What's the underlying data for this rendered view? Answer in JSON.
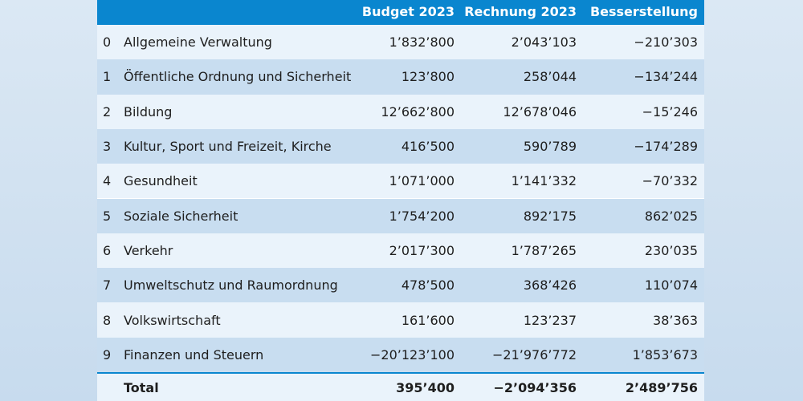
{
  "header": {
    "col_budget": "Budget 2023",
    "col_rechnung": "Rechnung 2023",
    "col_besser": "Besserstellung"
  },
  "rows": [
    {
      "num": "0",
      "name": "Allgemeine Verwaltung",
      "budget": "1’832’800",
      "rechnung": "2’043’103",
      "besser": "−210’303"
    },
    {
      "num": "1",
      "name": "Öffentliche Ordnung und Sicherheit",
      "budget": "123’800",
      "rechnung": "258’044",
      "besser": "−134’244"
    },
    {
      "num": "2",
      "name": "Bildung",
      "budget": "12’662’800",
      "rechnung": "12’678’046",
      "besser": "−15’246"
    },
    {
      "num": "3",
      "name": "Kultur, Sport und Freizeit, Kirche",
      "budget": "416’500",
      "rechnung": "590’789",
      "besser": "−174’289"
    },
    {
      "num": "4",
      "name": "Gesundheit",
      "budget": "1’071’000",
      "rechnung": "1’141’332",
      "besser": "−70’332"
    },
    {
      "num": "5",
      "name": "Soziale Sicherheit",
      "budget": "1’754’200",
      "rechnung": "892’175",
      "besser": "862’025"
    },
    {
      "num": "6",
      "name": "Verkehr",
      "budget": "2’017’300",
      "rechnung": "1’787’265",
      "besser": "230’035"
    },
    {
      "num": "7",
      "name": "Umweltschutz und Raumordnung",
      "budget": "478’500",
      "rechnung": "368’426",
      "besser": "110’074"
    },
    {
      "num": "8",
      "name": "Volkswirtschaft",
      "budget": "161’600",
      "rechnung": "123’237",
      "besser": "38’363"
    },
    {
      "num": "9",
      "name": "Finanzen und Steuern",
      "budget": "−20’123’100",
      "rechnung": "−21’976’772",
      "besser": "1’853’673"
    }
  ],
  "total": {
    "label": "Total",
    "budget": "395’400",
    "rechnung": "−2’094’356",
    "besser": "2’489’756"
  },
  "colors": {
    "header_bg": "#0a86cf",
    "row_light": "#eaf3fb",
    "row_dark": "#c8ddf0"
  }
}
